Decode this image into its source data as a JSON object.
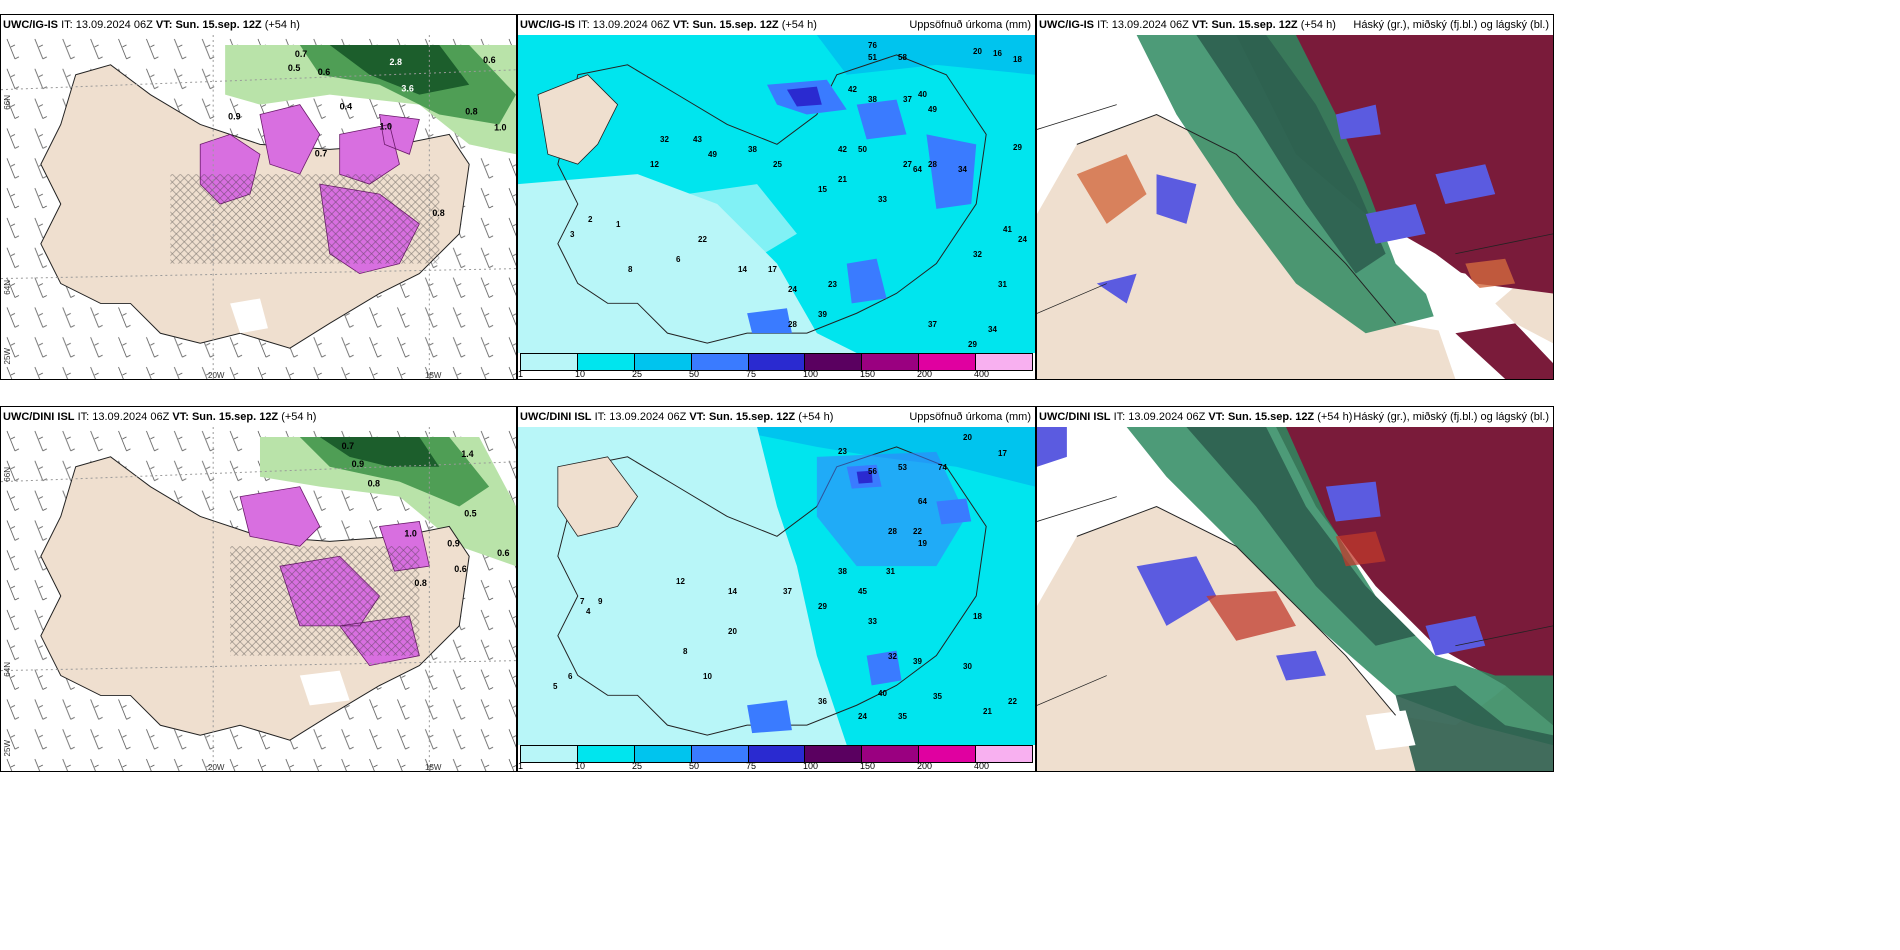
{
  "rows": [
    {
      "model": "UWC/IG-IS",
      "it_label": "IT:",
      "it_value": "13.09.2024 06Z",
      "vt_label": "VT:",
      "vt_value": "Sun. 15.sep. 12Z",
      "lead": "(+54 h)"
    },
    {
      "model": "UWC/DINI ISL",
      "it_label": "IT:",
      "it_value": "13.09.2024 06Z",
      "vt_label": "VT:",
      "vt_value": "Sun. 15.sep. 12Z",
      "lead": "(+54 h)"
    }
  ],
  "precip_title": "Uppsöfnuð úrkoma (mm)",
  "cloud_title": "Háský (gr.), miðský (fj.bl.) og lágský (bl.)",
  "colorbar": {
    "labels": [
      "1",
      "10",
      "25",
      "50",
      "75",
      "100",
      "150",
      "200",
      "400"
    ],
    "colors": [
      "#b8f6f8",
      "#00e5ee",
      "#00c4ee",
      "#3a7bff",
      "#2a2ad0",
      "#5a0060",
      "#9a0080",
      "#e000a0",
      "#f8b0f0"
    ]
  },
  "axis_labels": {
    "lat66": "66N",
    "lat64": "64N",
    "lon25": "25W",
    "lon20": "20W",
    "lon15": "15W"
  },
  "ig_precip_values": [
    "76",
    "51",
    "58",
    "20",
    "16",
    "18",
    "42",
    "38",
    "29",
    "37",
    "40",
    "49",
    "64",
    "42",
    "50",
    "33",
    "27",
    "28",
    "34",
    "41",
    "24",
    "32",
    "31",
    "37",
    "34",
    "29",
    "3",
    "2",
    "1",
    "12",
    "32",
    "43",
    "49",
    "38",
    "25",
    "15",
    "21",
    "22",
    "14",
    "17",
    "24",
    "28",
    "39",
    "23",
    "8",
    "6"
  ],
  "dini_precip_values": [
    "20",
    "23",
    "56",
    "53",
    "74",
    "17",
    "64",
    "28",
    "22",
    "19",
    "38",
    "31",
    "7",
    "9",
    "12",
    "14",
    "20",
    "37",
    "29",
    "45",
    "33",
    "36",
    "24",
    "35",
    "22",
    "21",
    "8",
    "10",
    "39",
    "40",
    "35",
    "32",
    "30",
    "18",
    "6",
    "5",
    "4"
  ],
  "ig_snow_values": [
    "0.7",
    "0.5",
    "0.6",
    "2.8",
    "3.6",
    "0.6",
    "0.8",
    "1.0",
    "0.7",
    "0.4",
    "1.0",
    "0.9",
    "0.8"
  ],
  "dini_snow_values": [
    "0.7",
    "0.9",
    "0.8",
    "1.4",
    "0.5",
    "0.6",
    "0.9",
    "0.6",
    "1.0",
    "0.8"
  ]
}
